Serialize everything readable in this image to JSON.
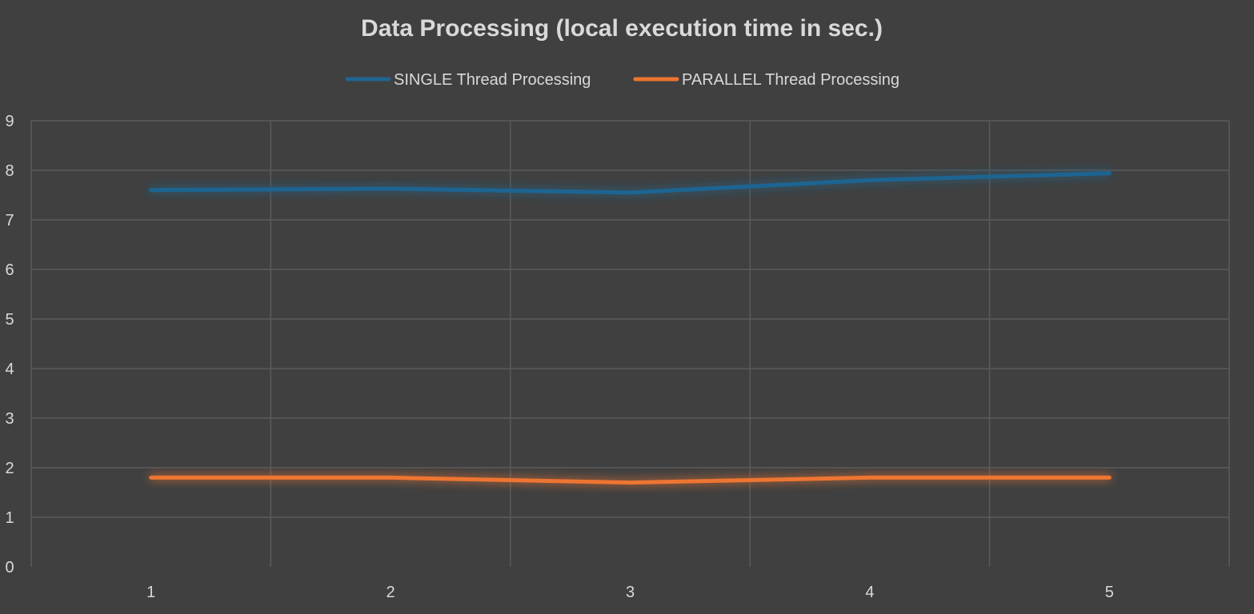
{
  "chart_data": {
    "type": "line",
    "title": "Data Processing (local execution time in sec.)",
    "xlabel": "",
    "ylabel": "",
    "categories": [
      "1",
      "2",
      "3",
      "4",
      "5"
    ],
    "ylim": [
      0,
      9
    ],
    "yticks": [
      "0",
      "1",
      "2",
      "3",
      "4",
      "5",
      "6",
      "7",
      "8",
      "9"
    ],
    "grid": true,
    "legend_position": "top",
    "series": [
      {
        "name": "SINGLE Thread Processing",
        "color": "#1f6591",
        "values": [
          7.6,
          7.63,
          7.55,
          7.8,
          7.94
        ]
      },
      {
        "name": "PARALLEL Thread Processing",
        "color": "#ed7431",
        "values": [
          1.8,
          1.8,
          1.7,
          1.8,
          1.8
        ]
      }
    ]
  },
  "colors": {
    "background": "#404040",
    "grid": "#5a5a5a",
    "text": "#d9d9d9"
  }
}
